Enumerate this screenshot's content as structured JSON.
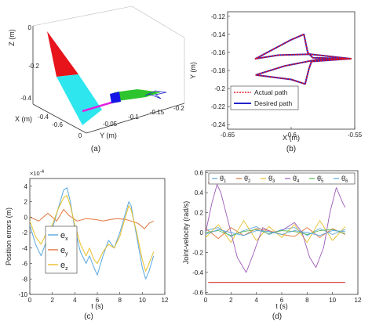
{
  "colors": {
    "actual": "#e8141c",
    "desired": "#2222cc",
    "ex": "#5aa8e0",
    "ey": "#e0763a",
    "ez": "#e8bf28",
    "limit": "#d0302a",
    "red_surface": "#e8141c",
    "cyan_surface": "#2ee6ee",
    "green_surface": "#2ec42e",
    "blue_surface": "#1414e6",
    "magenta_link": "#e020e0",
    "purple": "#9b59b6",
    "green": "#5cb85c"
  },
  "panels": {
    "a": {
      "caption": "(a)",
      "zlabel": "Z (m)",
      "xlabel": "X (m)",
      "ylabel": "Y (m)",
      "z_ticks": [
        "0",
        "-0.2",
        "-0.4"
      ],
      "x_ticks": [
        "-0.4",
        "-0.6"
      ],
      "y_ticks": [
        "0",
        "-0.05",
        "-0.1",
        "-0.15",
        "-0.2"
      ]
    },
    "b": {
      "caption": "(b)"
    },
    "c": {
      "caption": "(c)"
    },
    "d": {
      "caption": "(d)"
    }
  },
  "chart_data": [
    {
      "panel": "b",
      "type": "line",
      "xlabel": "X (m)",
      "ylabel": "Y (m)",
      "xlim": [
        -0.65,
        -0.55
      ],
      "ylim": [
        -0.245,
        -0.115
      ],
      "xticks": [
        -0.65,
        -0.6,
        -0.55
      ],
      "xtick_labels": [
        "-0.65",
        "-0.6",
        "-0.55"
      ],
      "yticks": [
        -0.12,
        -0.14,
        -0.16,
        -0.18,
        -0.2,
        -0.22,
        -0.24
      ],
      "ytick_labels": [
        "-0.12",
        "-0.14",
        "-0.16",
        "-0.18",
        "-0.2",
        "-0.22",
        "-0.24"
      ],
      "legend_position": "bottom-left",
      "series": [
        {
          "name": "Actual path",
          "style": "dotted",
          "color_key": "actual",
          "points": [
            [
              -0.628,
              -0.185
            ],
            [
              -0.605,
              -0.175
            ],
            [
              -0.58,
              -0.168
            ],
            [
              -0.553,
              -0.167
            ],
            [
              -0.583,
              -0.166
            ],
            [
              -0.587,
              -0.16
            ],
            [
              -0.59,
              -0.14
            ],
            [
              -0.6,
              -0.146
            ],
            [
              -0.628,
              -0.167
            ],
            [
              -0.61,
              -0.163
            ],
            [
              -0.585,
              -0.162
            ],
            [
              -0.553,
              -0.167
            ],
            [
              -0.584,
              -0.17
            ],
            [
              -0.586,
              -0.178
            ],
            [
              -0.589,
              -0.195
            ],
            [
              -0.6,
              -0.19
            ],
            [
              -0.628,
              -0.185
            ]
          ]
        },
        {
          "name": "Desired path",
          "style": "solid",
          "color_key": "desired",
          "points": [
            [
              -0.628,
              -0.185
            ],
            [
              -0.605,
              -0.175
            ],
            [
              -0.58,
              -0.168
            ],
            [
              -0.553,
              -0.167
            ],
            [
              -0.583,
              -0.166
            ],
            [
              -0.587,
              -0.16
            ],
            [
              -0.59,
              -0.14
            ],
            [
              -0.6,
              -0.146
            ],
            [
              -0.628,
              -0.167
            ],
            [
              -0.61,
              -0.163
            ],
            [
              -0.585,
              -0.162
            ],
            [
              -0.553,
              -0.167
            ],
            [
              -0.584,
              -0.17
            ],
            [
              -0.586,
              -0.178
            ],
            [
              -0.589,
              -0.195
            ],
            [
              -0.6,
              -0.19
            ],
            [
              -0.628,
              -0.185
            ]
          ]
        }
      ]
    },
    {
      "panel": "c",
      "type": "line",
      "xlabel": "t (s)",
      "ylabel": "Position errors (m)",
      "exponent_label": "×10",
      "exponent_power": "-4",
      "xlim": [
        0,
        12
      ],
      "ylim": [
        -10,
        5
      ],
      "xticks": [
        0,
        2,
        4,
        6,
        8,
        10,
        12
      ],
      "xtick_labels": [
        "0",
        "2",
        "4",
        "6",
        "8",
        "10",
        "12"
      ],
      "yticks": [
        4,
        2,
        0,
        -2,
        -4,
        -6,
        -8,
        -10
      ],
      "ytick_labels": [
        "4",
        "2",
        "0",
        "-2",
        "-4",
        "-6",
        "-8",
        "-10"
      ],
      "legend_position": "inside-center",
      "series": [
        {
          "name": "e",
          "subscript": "x",
          "color_key": "ex",
          "points": [
            [
              0,
              -1.0
            ],
            [
              0.5,
              -3.5
            ],
            [
              1.0,
              -5.0
            ],
            [
              1.5,
              -3.0
            ],
            [
              2.0,
              -1.5
            ],
            [
              2.5,
              1.0
            ],
            [
              3.0,
              3.5
            ],
            [
              3.3,
              3.8
            ],
            [
              3.6,
              2.0
            ],
            [
              4.0,
              -1.5
            ],
            [
              4.5,
              -4.5
            ],
            [
              5.0,
              -6.0
            ],
            [
              5.3,
              -5.0
            ],
            [
              5.7,
              -6.5
            ],
            [
              6.0,
              -7.5
            ],
            [
              6.5,
              -5.0
            ],
            [
              7.0,
              -3.0
            ],
            [
              7.5,
              -4.0
            ],
            [
              8.0,
              -2.0
            ],
            [
              8.5,
              0.5
            ],
            [
              8.8,
              2.0
            ],
            [
              9.0,
              1.5
            ],
            [
              9.5,
              -2.5
            ],
            [
              10.0,
              -6.5
            ],
            [
              10.3,
              -8.0
            ],
            [
              10.6,
              -7.0
            ],
            [
              11.0,
              -5.0
            ]
          ]
        },
        {
          "name": "e",
          "subscript": "y",
          "color_key": "ey",
          "points": [
            [
              0,
              0.0
            ],
            [
              0.8,
              -0.5
            ],
            [
              1.6,
              0.5
            ],
            [
              2.4,
              -0.5
            ],
            [
              3.0,
              1.0
            ],
            [
              3.5,
              0.2
            ],
            [
              4.2,
              -0.5
            ],
            [
              5.0,
              -0.2
            ],
            [
              5.8,
              -0.3
            ],
            [
              6.5,
              -0.5
            ],
            [
              7.2,
              -0.3
            ],
            [
              7.8,
              -0.2
            ],
            [
              8.5,
              -0.3
            ],
            [
              9.0,
              -0.5
            ],
            [
              9.6,
              -0.8
            ],
            [
              10.2,
              -1.5
            ],
            [
              10.6,
              -0.8
            ],
            [
              11.0,
              -0.5
            ]
          ]
        },
        {
          "name": "e",
          "subscript": "z",
          "color_key": "ez",
          "points": [
            [
              0,
              -0.5
            ],
            [
              0.5,
              -2.5
            ],
            [
              1.0,
              -3.5
            ],
            [
              1.5,
              -2.0
            ],
            [
              2.0,
              -1.0
            ],
            [
              2.5,
              1.0
            ],
            [
              3.0,
              2.5
            ],
            [
              3.3,
              2.8
            ],
            [
              3.6,
              1.5
            ],
            [
              4.0,
              -1.0
            ],
            [
              4.5,
              -3.5
            ],
            [
              5.0,
              -5.0
            ],
            [
              5.3,
              -4.0
            ],
            [
              5.7,
              -5.5
            ],
            [
              6.0,
              -6.0
            ],
            [
              6.5,
              -4.5
            ],
            [
              7.0,
              -3.5
            ],
            [
              7.5,
              -4.0
            ],
            [
              8.0,
              -2.5
            ],
            [
              8.5,
              0.0
            ],
            [
              8.8,
              1.5
            ],
            [
              9.0,
              1.0
            ],
            [
              9.5,
              -2.0
            ],
            [
              10.0,
              -5.5
            ],
            [
              10.3,
              -7.0
            ],
            [
              10.6,
              -6.0
            ],
            [
              11.0,
              -4.5
            ]
          ]
        }
      ]
    },
    {
      "panel": "d",
      "type": "line",
      "xlabel": "t (s)",
      "ylabel": "Joint-velocity (rad/s)",
      "xlim": [
        0,
        12
      ],
      "ylim": [
        -0.62,
        0.62
      ],
      "xticks": [
        0,
        2,
        4,
        6,
        8,
        10,
        12
      ],
      "xtick_labels": [
        "0",
        "2",
        "4",
        "6",
        "8",
        "10",
        "12"
      ],
      "yticks": [
        0.6,
        0.4,
        0.2,
        0,
        -0.2,
        -0.4,
        -0.6
      ],
      "ytick_labels": [
        "0.6",
        "0.4",
        "0.2",
        "0",
        "-0.2",
        "-0.4",
        "-0.6"
      ],
      "legend_position": "top",
      "limits": [
        0.5,
        -0.5
      ],
      "series": [
        {
          "name": "θ̇",
          "subscript": "1",
          "color_key": "ex",
          "points": [
            [
              0,
              0.02
            ],
            [
              1,
              0.05
            ],
            [
              2,
              -0.04
            ],
            [
              3,
              0.02
            ],
            [
              4,
              0.06
            ],
            [
              5,
              -0.02
            ],
            [
              6,
              0.03
            ],
            [
              7,
              0.05
            ],
            [
              8,
              -0.03
            ],
            [
              9,
              0.04
            ],
            [
              10,
              -0.02
            ],
            [
              11,
              0.03
            ]
          ]
        },
        {
          "name": "θ̇",
          "subscript": "2",
          "color_key": "ey",
          "points": [
            [
              0,
              0.04
            ],
            [
              1,
              -0.06
            ],
            [
              2,
              0.05
            ],
            [
              3,
              -0.03
            ],
            [
              4,
              0.04
            ],
            [
              5,
              0.02
            ],
            [
              6,
              -0.02
            ],
            [
              7,
              -0.04
            ],
            [
              8,
              0.05
            ],
            [
              9,
              -0.05
            ],
            [
              10,
              0.04
            ],
            [
              11,
              -0.02
            ]
          ]
        },
        {
          "name": "θ̇",
          "subscript": "3",
          "color_key": "ez",
          "points": [
            [
              0,
              -0.05
            ],
            [
              1,
              0.08
            ],
            [
              2,
              -0.1
            ],
            [
              3,
              0.12
            ],
            [
              4,
              -0.08
            ],
            [
              5,
              0.06
            ],
            [
              6,
              -0.05
            ],
            [
              7,
              0.08
            ],
            [
              8,
              -0.1
            ],
            [
              9,
              0.12
            ],
            [
              10,
              -0.08
            ],
            [
              11,
              0.06
            ]
          ]
        },
        {
          "name": "θ̇",
          "subscript": "4",
          "color_key": "purple",
          "points": [
            [
              0,
              0.0
            ],
            [
              0.5,
              0.3
            ],
            [
              0.9,
              0.48
            ],
            [
              1.2,
              0.4
            ],
            [
              1.8,
              0.1
            ],
            [
              2.5,
              -0.25
            ],
            [
              3.2,
              -0.4
            ],
            [
              3.8,
              -0.2
            ],
            [
              4.5,
              0.05
            ],
            [
              5.2,
              0.0
            ],
            [
              6.0,
              0.02
            ],
            [
              7.0,
              0.1
            ],
            [
              7.6,
              0.0
            ],
            [
              8.2,
              -0.25
            ],
            [
              8.7,
              -0.35
            ],
            [
              9.3,
              -0.15
            ],
            [
              9.8,
              0.2
            ],
            [
              10.3,
              0.45
            ],
            [
              10.8,
              0.3
            ],
            [
              11.0,
              0.25
            ]
          ]
        },
        {
          "name": "θ̇",
          "subscript": "5",
          "color_key": "green",
          "points": [
            [
              0,
              0.0
            ],
            [
              1,
              0.02
            ],
            [
              2,
              -0.03
            ],
            [
              3,
              0.01
            ],
            [
              4,
              0.03
            ],
            [
              5,
              -0.01
            ],
            [
              6,
              0.02
            ],
            [
              7,
              0.01
            ],
            [
              8,
              -0.02
            ],
            [
              9,
              0.02
            ],
            [
              10,
              0.03
            ],
            [
              11,
              -0.01
            ]
          ]
        },
        {
          "name": "θ̇",
          "subscript": "6",
          "color_key": "ex",
          "points": [
            [
              0,
              -0.02
            ],
            [
              1,
              0.03
            ],
            [
              2,
              0.0
            ],
            [
              3,
              -0.03
            ],
            [
              4,
              0.02
            ],
            [
              5,
              0.01
            ],
            [
              6,
              -0.02
            ],
            [
              7,
              0.02
            ],
            [
              8,
              0.0
            ],
            [
              9,
              -0.03
            ],
            [
              10,
              0.02
            ],
            [
              11,
              0.01
            ]
          ]
        }
      ]
    }
  ]
}
